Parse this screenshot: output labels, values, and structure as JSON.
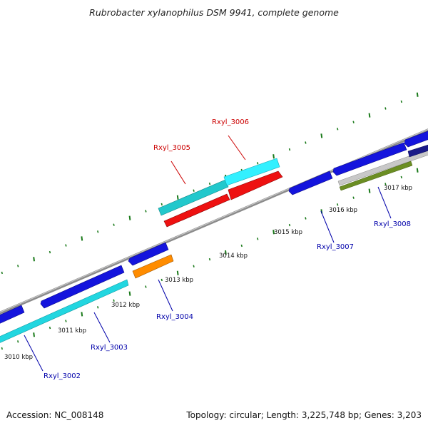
{
  "title": "Rubrobacter xylanophilus DSM 9941, complete genome",
  "footer": {
    "accession": "Accession: NC_008148",
    "summary": "Topology: circular; Length: 3,225,748 bp; Genes: 3,203"
  },
  "colors": {
    "backbone": "#8c8c8c",
    "ticks": "#1a7a1a",
    "label_forward": "#cc0000",
    "label_reverse": "#0000aa",
    "cyan": "#22e6f0",
    "teal": "#20c8c8",
    "red": "#ee1111",
    "blue": "#1111dd",
    "orange": "#ff8c00",
    "gray": "#bdbdbd",
    "olive": "#6b8e23",
    "navy": "#1a1a88"
  },
  "tick_labels": [
    {
      "text": "3010 kbp"
    },
    {
      "text": "3011 kbp"
    },
    {
      "text": "3012 kbp"
    },
    {
      "text": "3013 kbp"
    },
    {
      "text": "3014 kbp"
    },
    {
      "text": "3015 kbp"
    },
    {
      "text": "3016 kbp"
    },
    {
      "text": "3017 kbp"
    }
  ],
  "genes": [
    {
      "id": "Rxyl_3002",
      "strand": "reverse"
    },
    {
      "id": "Rxyl_3003",
      "strand": "reverse"
    },
    {
      "id": "Rxyl_3004",
      "strand": "reverse"
    },
    {
      "id": "Rxyl_3005",
      "strand": "forward"
    },
    {
      "id": "Rxyl_3006",
      "strand": "forward"
    },
    {
      "id": "Rxyl_3007",
      "strand": "reverse"
    },
    {
      "id": "Rxyl_3008",
      "strand": "reverse"
    }
  ]
}
